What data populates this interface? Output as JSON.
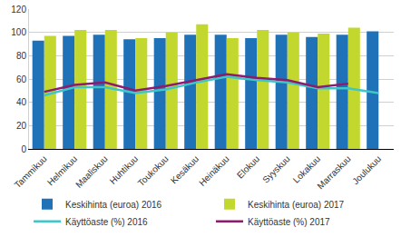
{
  "chart_data": {
    "type": "bar",
    "categories": [
      "Tammikuu",
      "Helmikuu",
      "Maaliskuu",
      "Huhtikuu",
      "Toukokuu",
      "Kesäkuu",
      "Heinäkuu",
      "Elokuu",
      "Syyskuu",
      "Lokakuu",
      "Marraskuu",
      "Joulukuu"
    ],
    "series": [
      {
        "name": "Keskihinta (euroa) 2016",
        "type": "bar",
        "color": "#1f71b8",
        "values": [
          93,
          97,
          98,
          94,
          95,
          98,
          98,
          95,
          98,
          96,
          98,
          101
        ]
      },
      {
        "name": "Keskihinta (euroa) 2017",
        "type": "bar",
        "color": "#c2d82e",
        "values": [
          97,
          102,
          102,
          95,
          100,
          107,
          95,
          102,
          100,
          99,
          104,
          null
        ]
      },
      {
        "name": "Käyttöaste (%) 2016",
        "type": "line",
        "color": "#3fc6c8",
        "values": [
          46,
          53,
          53,
          48,
          51,
          57,
          62,
          59,
          57,
          52,
          52,
          48
        ]
      },
      {
        "name": "Käyttöaste (%) 2017",
        "type": "line",
        "color": "#8e1b6e",
        "values": [
          49,
          55,
          57,
          50,
          54,
          59,
          64,
          61,
          59,
          53,
          56,
          null
        ]
      }
    ],
    "ylim": [
      0,
      120
    ],
    "yticks": [
      0,
      20,
      40,
      60,
      80,
      100,
      120
    ],
    "grid": true,
    "legend": "bottom"
  }
}
